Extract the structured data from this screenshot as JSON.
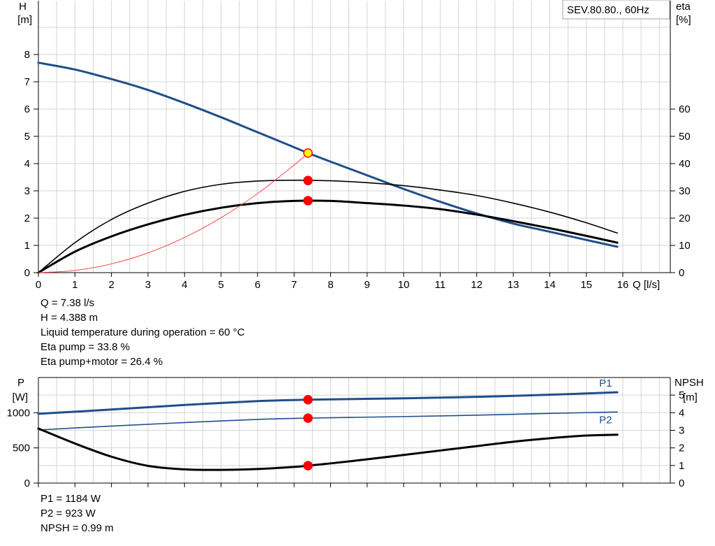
{
  "chart_data": [
    {
      "type": "line",
      "title": "SEV.80.80., 60Hz",
      "xlabel": "Q [l/s]",
      "ylabel_left": [
        "H",
        "[m]"
      ],
      "ylabel_right": [
        "eta",
        "[%]"
      ],
      "x_ticks": [
        0,
        1,
        2,
        3,
        4,
        5,
        6,
        7,
        8,
        9,
        10,
        11,
        12,
        13,
        14,
        15,
        16
      ],
      "y_ticks_left": [
        0,
        1,
        2,
        3,
        4,
        5,
        6,
        7,
        8
      ],
      "y_ticks_right": [
        0,
        10,
        20,
        30,
        40,
        50,
        60
      ],
      "xlim": [
        0,
        17.3
      ],
      "ylim": [
        0,
        10
      ],
      "y2lim": [
        0,
        100
      ],
      "grid": true,
      "series": [
        {
          "axis": "left",
          "color": "#1f4e8c",
          "width": 3,
          "x": [
            0,
            1,
            2,
            3,
            4,
            5,
            6,
            7,
            7.38,
            8,
            9,
            10,
            11,
            12,
            13,
            14,
            15,
            15.85
          ],
          "y": [
            7.7,
            7.45,
            7.1,
            6.7,
            6.22,
            5.7,
            5.15,
            4.6,
            4.388,
            4.07,
            3.57,
            3.07,
            2.6,
            2.17,
            1.8,
            1.5,
            1.2,
            0.95
          ]
        },
        {
          "axis": "right",
          "color": "#000000",
          "width": 1.6,
          "x": [
            0,
            1,
            2,
            3,
            4,
            5,
            6,
            7,
            8,
            9,
            10,
            11,
            12,
            13,
            14,
            15,
            15.85
          ],
          "y": [
            0,
            11,
            19.5,
            25.5,
            29.8,
            32.4,
            33.6,
            33.9,
            33.7,
            33.0,
            31.9,
            30.3,
            28.3,
            25.5,
            22.2,
            18.3,
            14.5
          ]
        },
        {
          "axis": "right",
          "color": "#000000",
          "width": 3,
          "x": [
            0,
            1,
            2,
            3,
            4,
            5,
            6,
            7,
            8,
            9,
            10,
            11,
            12,
            13,
            14,
            15,
            15.85
          ],
          "y": [
            0,
            7.7,
            13.3,
            17.7,
            21.2,
            23.8,
            25.5,
            26.3,
            26.3,
            25.5,
            24.6,
            23.3,
            21.3,
            18.9,
            16.3,
            13.5,
            11
          ]
        },
        {
          "axis": "left",
          "color": "#ff4444",
          "width": 1,
          "x": [
            0,
            1,
            2,
            3,
            4,
            5,
            6,
            7,
            7.38
          ],
          "y": [
            0,
            0.081,
            0.322,
            0.725,
            1.289,
            2.014,
            2.9,
            3.947,
            4.388
          ]
        }
      ],
      "points": [
        {
          "axis": "left",
          "x": 7.38,
          "y": 4.388,
          "fill": "#ffff00",
          "stroke": "#ff0000"
        },
        {
          "axis": "right",
          "x": 7.38,
          "y": 33.8,
          "fill": "#ff0000",
          "stroke": "#ff0000"
        },
        {
          "axis": "right",
          "x": 7.38,
          "y": 26.4,
          "fill": "#ff0000",
          "stroke": "#ff0000"
        }
      ]
    },
    {
      "type": "line",
      "ylabel_left": [
        "P",
        "[W]"
      ],
      "ylabel_right": [
        "NPSH",
        "[m]"
      ],
      "x_ticks": [
        0,
        1,
        2,
        3,
        4,
        5,
        6,
        7,
        8,
        9,
        10,
        11,
        12,
        13,
        14,
        15,
        16
      ],
      "y_ticks_left": [
        0,
        500,
        1000
      ],
      "y_ticks_right": [
        0,
        1,
        2,
        3,
        4,
        5
      ],
      "xlim": [
        0,
        17.3
      ],
      "ylim": [
        0,
        1500
      ],
      "y2lim": [
        0,
        6
      ],
      "grid": true,
      "series": [
        {
          "name": "P1",
          "axis": "left",
          "color": "#1f4e8c",
          "width": 3,
          "x": [
            0,
            2,
            4,
            6,
            7.38,
            10,
            12,
            14,
            15.85
          ],
          "y": [
            985,
            1045,
            1110,
            1165,
            1184,
            1205,
            1225,
            1255,
            1290
          ]
        },
        {
          "name": "P2",
          "axis": "left",
          "color": "#1f4e8c",
          "width": 1.6,
          "x": [
            0,
            2,
            4,
            6,
            7.38,
            10,
            12,
            14,
            15.85
          ],
          "y": [
            755,
            810,
            860,
            905,
            923,
            945,
            965,
            990,
            1010
          ]
        },
        {
          "axis": "right",
          "color": "#000000",
          "width": 3,
          "x": [
            0,
            1,
            2,
            3,
            4,
            5,
            6,
            7,
            7.38,
            8,
            9,
            10,
            11,
            12,
            13,
            14,
            15,
            15.85
          ],
          "y": [
            3.1,
            2.25,
            1.5,
            0.98,
            0.78,
            0.75,
            0.8,
            0.92,
            0.99,
            1.12,
            1.35,
            1.6,
            1.85,
            2.1,
            2.35,
            2.55,
            2.7,
            2.75
          ]
        }
      ],
      "points": [
        {
          "axis": "left",
          "x": 7.38,
          "y": 1184,
          "fill": "#ff0000",
          "stroke": "#ff0000"
        },
        {
          "axis": "left",
          "x": 7.38,
          "y": 923,
          "fill": "#ff0000",
          "stroke": "#ff0000"
        },
        {
          "axis": "right",
          "x": 7.38,
          "y": 0.99,
          "fill": "#ff0000",
          "stroke": "#ff0000"
        }
      ]
    }
  ],
  "info_top": [
    "Q = 7.38 l/s",
    "H = 4.388 m",
    "Liquid temperature during operation = 60 °C",
    "Eta pump = 33.8 %",
    "Eta pump+motor = 26.4 %"
  ],
  "info_bottom": [
    "P1 = 1184 W",
    "P2 = 923 W",
    "NPSH = 0.99 m"
  ]
}
